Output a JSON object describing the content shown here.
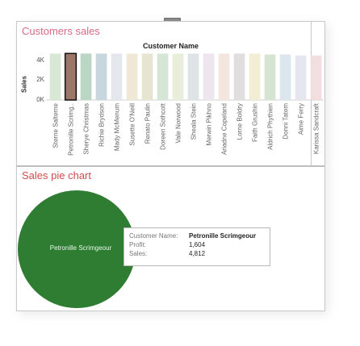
{
  "dashboard": {
    "title1": "Customers sales",
    "title2": "Sales pie chart"
  },
  "chart_data": {
    "type": "bar",
    "title": "Customers sales",
    "xlabel": "Customer Name",
    "ylabel": "Sales",
    "ylim": [
      0,
      5000
    ],
    "yticks": [
      "4K",
      "2K",
      "0K"
    ],
    "categories": [
      "Sterne Salterne",
      "Petronille Scrimg..",
      "Sherye Christmas",
      "Richie Brydson",
      "Mady McMenum",
      "Susette O'Neill",
      "Renato Paulin",
      "Doreen Sothcott",
      "Vale Norwood",
      "Sheala Stein",
      "Merwin Pikhno",
      "Ariadne Copeland",
      "Lorne Boldry",
      "Faith Grushin",
      "Aldrich Phythien",
      "Donni Tatem",
      "Aime Ferry",
      "Karissa Sandcraft"
    ],
    "values": [
      4800,
      4812,
      4800,
      4800,
      4800,
      4800,
      4800,
      4800,
      4800,
      4800,
      4800,
      4800,
      4800,
      4800,
      4700,
      4700,
      4600,
      4600
    ],
    "colors": [
      "#d8e8d4",
      "#9a7766",
      "#bcd6c6",
      "#c8d6de",
      "#e4e8ec",
      "#f0e8d6",
      "#e8e4d2",
      "#d6e6d6",
      "#e8eeda",
      "#dee4e6",
      "#eee6ee",
      "#f2e6de",
      "#e0dede",
      "#f2eed6",
      "#d6e4d2",
      "#dce6ee",
      "#e6e6f0",
      "#f2dede"
    ],
    "highlighted_index": 1,
    "highlight_color": "#9a7766"
  },
  "pie": {
    "label": "Petronille Scrimgeour",
    "color": "#2e7d32"
  },
  "tooltip": {
    "customer_key": "Customer Name:",
    "customer_val": "Petronille Scrimgeour",
    "profit_key": "Profit:",
    "profit_val": "1,604",
    "sales_key": "Sales:",
    "sales_val": "4,812"
  }
}
